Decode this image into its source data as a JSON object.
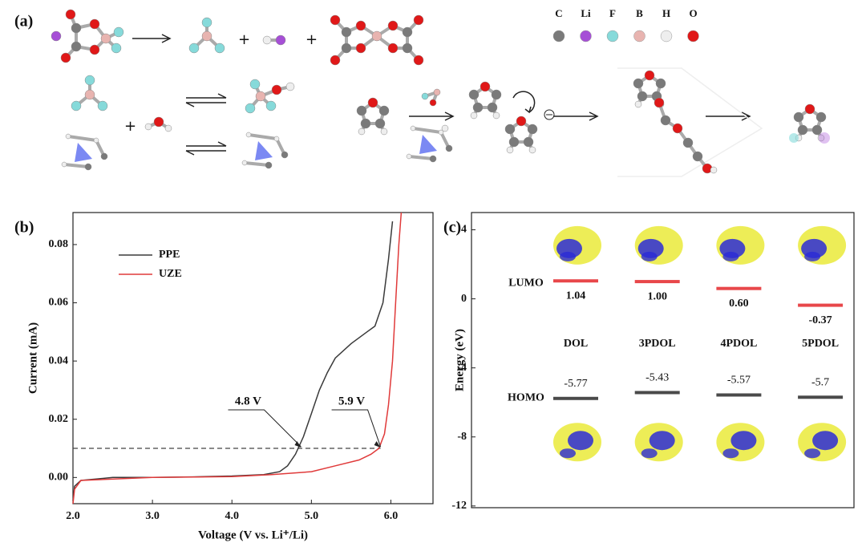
{
  "panel_labels": [
    "(a)",
    "(b)",
    "(c)"
  ],
  "elements": [
    "C",
    "Li",
    "F",
    "B",
    "H",
    "O"
  ],
  "element_colors": [
    "#7a7a7a",
    "#a64fd6",
    "#86dada",
    "#e8b4b0",
    "#eeeeee",
    "#e01818"
  ],
  "chart_data": [
    {
      "type": "line",
      "xlabel": "Voltage (V vs. Li⁺/Li)",
      "ylabel": "Current (mA)",
      "xlim": [
        2.0,
        6.53
      ],
      "ylim": [
        -0.009,
        0.091
      ],
      "xticks": [
        {
          "value": 2,
          "label": "2.0"
        },
        {
          "value": 3,
          "label": "3.0"
        },
        {
          "value": 4,
          "label": "4.0"
        },
        {
          "value": 5,
          "label": "5.0"
        },
        {
          "value": 6,
          "label": "6.0"
        }
      ],
      "yticks": [
        {
          "value": 0,
          "label": "0.00"
        },
        {
          "value": 0.02,
          "label": "0.02"
        },
        {
          "value": 0.04,
          "label": "0.04"
        },
        {
          "value": 0.06,
          "label": "0.06"
        },
        {
          "value": 0.08,
          "label": "0.08"
        }
      ],
      "reference_y": 0.01,
      "annotations": [
        {
          "text": "4.8 V",
          "x": 4.87,
          "y": 0.01
        },
        {
          "text": "5.9 V",
          "x": 5.87,
          "y": 0.01
        }
      ],
      "series": [
        {
          "name": "PPE",
          "color": "#3a3a3a",
          "x": [
            2.0,
            2.02,
            2.1,
            2.5,
            3.0,
            3.5,
            4.0,
            4.4,
            4.6,
            4.7,
            4.8,
            4.9,
            5.0,
            5.1,
            5.2,
            5.3,
            5.5,
            5.7,
            5.8,
            5.9,
            5.97,
            6.02
          ],
          "values": [
            -0.008,
            -0.003,
            -0.001,
            0,
            0,
            0.0002,
            0.0005,
            0.001,
            0.002,
            0.004,
            0.008,
            0.014,
            0.022,
            0.03,
            0.036,
            0.041,
            0.046,
            0.05,
            0.052,
            0.06,
            0.075,
            0.088
          ]
        },
        {
          "name": "UZE",
          "color": "#e03a3a",
          "x": [
            2.0,
            2.02,
            2.1,
            3.0,
            4.0,
            4.5,
            5.0,
            5.3,
            5.6,
            5.75,
            5.85,
            5.92,
            5.97,
            6.02,
            6.06,
            6.1,
            6.13
          ],
          "values": [
            -0.009,
            -0.004,
            -0.001,
            0,
            0.0003,
            0.001,
            0.002,
            0.004,
            0.006,
            0.008,
            0.01,
            0.015,
            0.025,
            0.04,
            0.06,
            0.08,
            0.091
          ]
        }
      ]
    },
    {
      "type": "energy_level",
      "ylabel": "Energy (eV)",
      "ylim": [
        -12.1,
        5.0
      ],
      "yticks": [
        4,
        0,
        -4,
        -8,
        -12
      ],
      "categories": [
        "DOL",
        "3PDOL",
        "4PDOL",
        "5PDOL"
      ],
      "series": [
        {
          "name": "LUMO",
          "color": "#e8474a",
          "values": [
            1.04,
            1.0,
            0.6,
            -0.37
          ],
          "value_labels": [
            "1.04",
            "1.00",
            "0.60",
            "-0.37"
          ]
        },
        {
          "name": "HOMO",
          "color": "#4a4a4a",
          "values": [
            -5.77,
            -5.43,
            -5.57,
            -5.7
          ]
        }
      ]
    }
  ]
}
